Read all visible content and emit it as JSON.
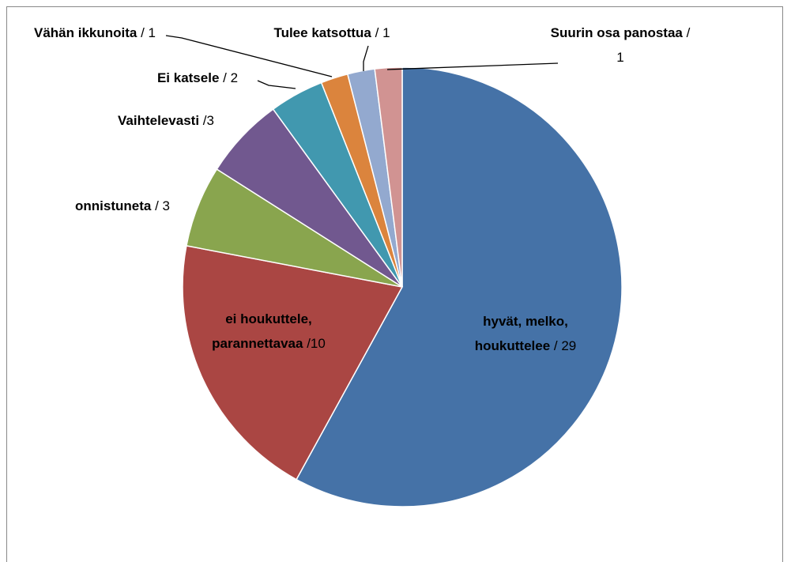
{
  "chart_data": {
    "type": "pie",
    "categories": [
      "hyvät, melko, houkuttelee",
      "ei houkuttele, parannettavaa",
      "onnistuneta",
      "Vaihtelevasti",
      "Ei katsele",
      "Vähän ikkunoita",
      "Tulee katsottua",
      "Suurin osa panostaa"
    ],
    "values": [
      29,
      10,
      3,
      3,
      2,
      1,
      1,
      1
    ],
    "value_labels": [
      "/ 29",
      "/10",
      "/ 3",
      "/3",
      "/ 2",
      "/ 1",
      "/ 1",
      "/ 1"
    ],
    "colors": [
      "#4572a7",
      "#aa4643",
      "#89a54e",
      "#71588f",
      "#4198af",
      "#db843d",
      "#93a9cf",
      "#d19392"
    ]
  }
}
